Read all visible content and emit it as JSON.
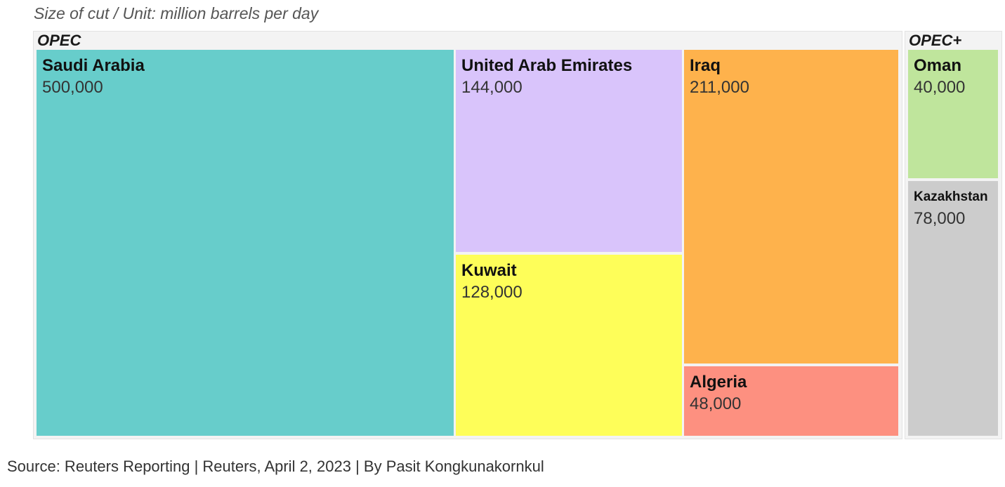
{
  "chart_data": {
    "type": "treemap",
    "subtitle": "Size of cut / Unit: million barrels per day",
    "groups": [
      {
        "name": "OPEC",
        "items": [
          {
            "name": "Saudi Arabia",
            "value": 500000,
            "label": "500,000",
            "color": "#67cdcb"
          },
          {
            "name": "United Arab Emirates",
            "value": 144000,
            "label": "144,000",
            "color": "#d9c4fb"
          },
          {
            "name": "Kuwait",
            "value": 128000,
            "label": "128,000",
            "color": "#fefe59"
          },
          {
            "name": "Iraq",
            "value": 211000,
            "label": "211,000",
            "color": "#feb24c"
          },
          {
            "name": "Algeria",
            "value": 48000,
            "label": "48,000",
            "color": "#fd9080"
          }
        ]
      },
      {
        "name": "OPEC+",
        "items": [
          {
            "name": "Oman",
            "value": 40000,
            "label": "40,000",
            "color": "#bfe59c"
          },
          {
            "name": "Kazakhstan",
            "value": 78000,
            "label": "78,000",
            "color": "#cccccc"
          }
        ]
      }
    ],
    "source": "Source: Reuters Reporting | Reuters, April 2, 2023 | By Pasit Kongkunakornkul"
  }
}
